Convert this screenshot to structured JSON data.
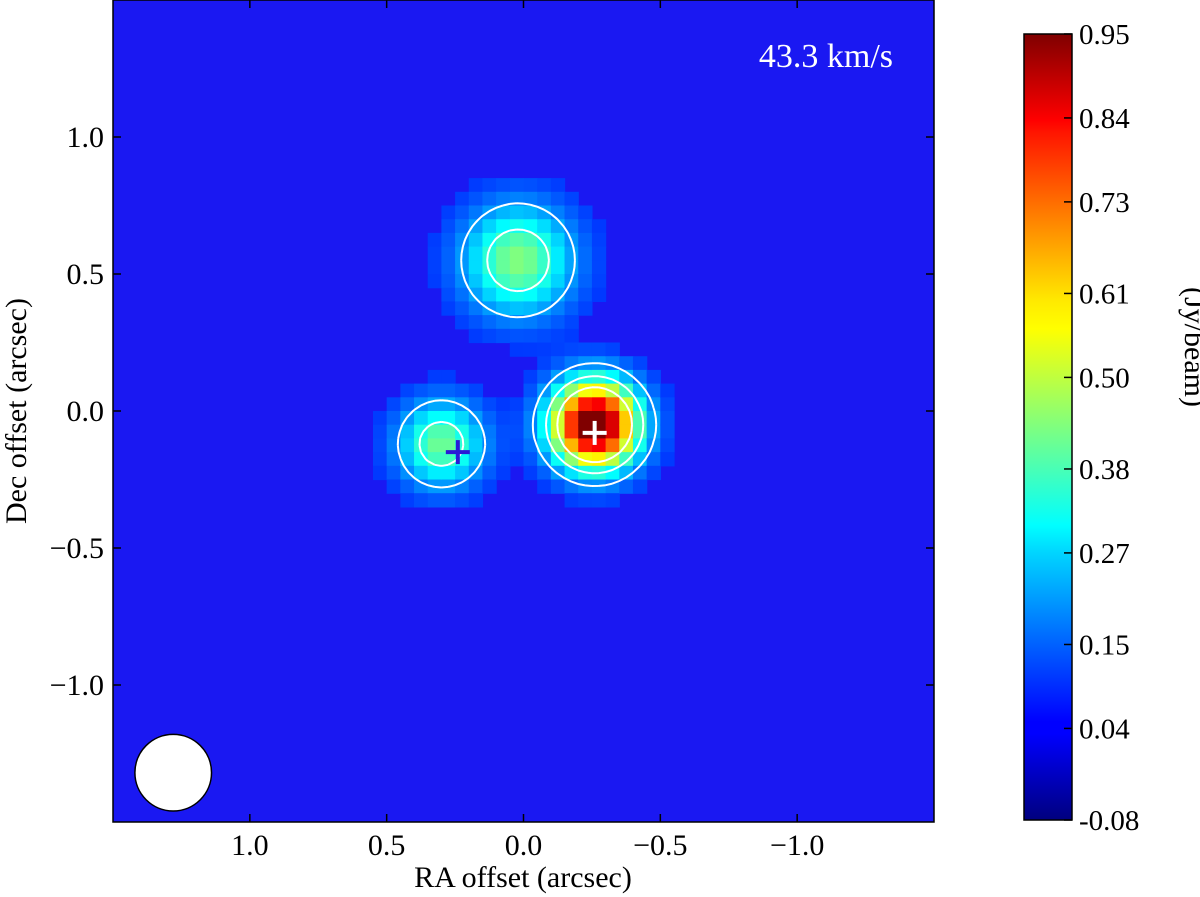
{
  "chart_data": {
    "type": "heatmap",
    "title": "",
    "annotation": "43.3 km/s",
    "xlabel": "RA offset (arcsec)",
    "ylabel": "Dec offset (arcsec)",
    "xlim": [
      1.5,
      -1.5
    ],
    "ylim": [
      -1.5,
      1.5
    ],
    "xticks": [
      {
        "value": 1.0,
        "label": "1.0"
      },
      {
        "value": 0.5,
        "label": "0.5"
      },
      {
        "value": 0.0,
        "label": "0.0"
      },
      {
        "value": -0.5,
        "label": "−0.5"
      },
      {
        "value": -1.0,
        "label": "−1.0"
      }
    ],
    "yticks": [
      {
        "value": 1.0,
        "label": "1.0"
      },
      {
        "value": 0.5,
        "label": "0.5"
      },
      {
        "value": 0.0,
        "label": "0.0"
      },
      {
        "value": -0.5,
        "label": "−0.5"
      },
      {
        "value": -1.0,
        "label": "−1.0"
      }
    ],
    "colorbar": {
      "label": "(Jy/beam)",
      "range": [
        -0.08,
        0.95
      ],
      "ticks": [
        {
          "value": 0.95,
          "label": "0.95"
        },
        {
          "value": 0.84,
          "label": "0.84"
        },
        {
          "value": 0.73,
          "label": "0.73"
        },
        {
          "value": 0.61,
          "label": "0.61"
        },
        {
          "value": 0.5,
          "label": "0.50"
        },
        {
          "value": 0.38,
          "label": "0.38"
        },
        {
          "value": 0.27,
          "label": "0.27"
        },
        {
          "value": 0.15,
          "label": "0.15"
        },
        {
          "value": 0.04,
          "label": "0.04"
        },
        {
          "value": -0.08,
          "label": "-0.08"
        }
      ],
      "colormap": "jet"
    },
    "sources": [
      {
        "ra": 0.02,
        "dec": 0.55,
        "peak": 0.36,
        "sigma": 0.14
      },
      {
        "ra": 0.3,
        "dec": -0.12,
        "peak": 0.34,
        "sigma": 0.11
      },
      {
        "ra": -0.26,
        "dec": -0.05,
        "peak": 0.95,
        "sigma": 0.11
      }
    ],
    "background_level": 0.08,
    "contour_levels": [
      0.2,
      0.34,
      0.52
    ],
    "markers": [
      {
        "ra": 0.24,
        "dec": -0.15,
        "symbol": "+",
        "color": "#2a1ad6"
      },
      {
        "ra": -0.26,
        "dec": -0.08,
        "symbol": "+",
        "color": "#ffffff"
      }
    ],
    "beam": {
      "ra": 1.28,
      "dec": -1.32,
      "diameter_arcsec": 0.28,
      "color": "#ffffff"
    }
  }
}
